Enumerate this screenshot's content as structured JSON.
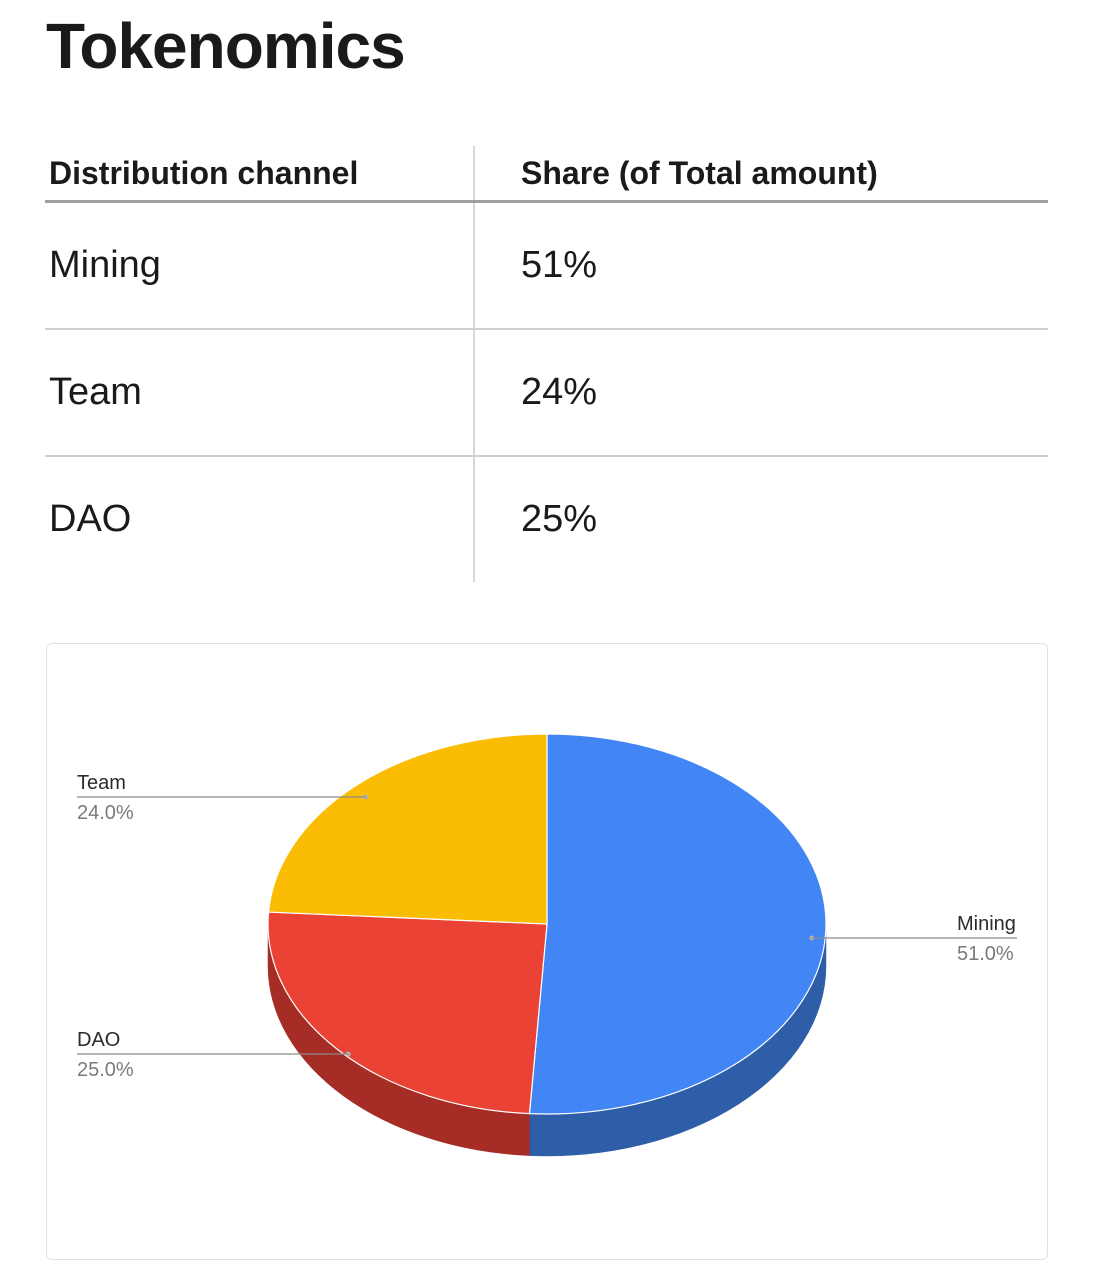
{
  "header": {
    "title": "Tokenomics"
  },
  "table": {
    "headers": [
      "Distribution channel",
      "Share (of Total amount)"
    ],
    "rows": [
      [
        "Mining",
        "51%"
      ],
      [
        "Team",
        "24%"
      ],
      [
        "DAO",
        "25%"
      ]
    ]
  },
  "chart_data": {
    "type": "pie",
    "style": "3d",
    "title": "",
    "slices": [
      {
        "label": "Mining",
        "value": 51.0,
        "display": "51.0%",
        "color": "#4285f4",
        "side_color": "#2f5ea8"
      },
      {
        "label": "DAO",
        "value": 25.0,
        "display": "25.0%",
        "color": "#ea4335",
        "side_color": "#a52d25"
      },
      {
        "label": "Team",
        "value": 24.0,
        "display": "24.0%",
        "color": "#fbbc04",
        "side_color": "#b58704"
      }
    ],
    "legend": "none",
    "labels": "outside with leader lines"
  }
}
